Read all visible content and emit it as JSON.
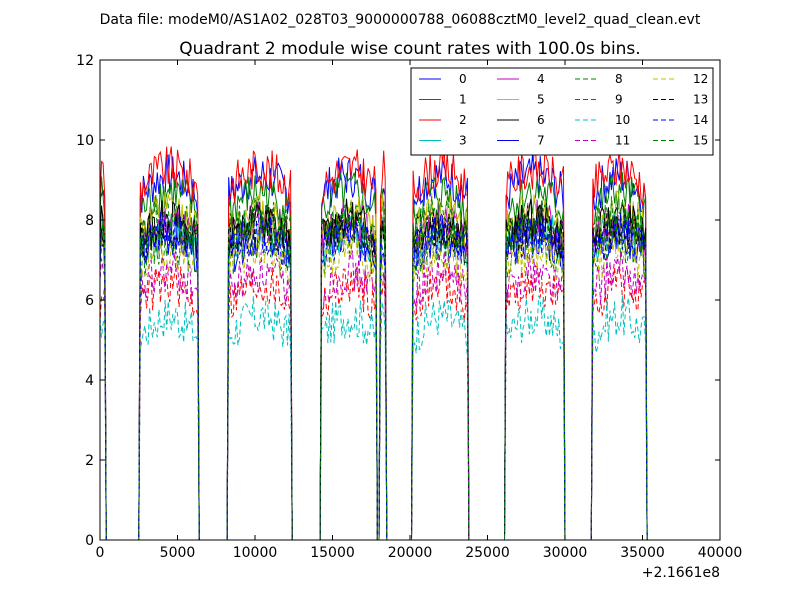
{
  "header": {
    "datafile": "Data file: modeM0/AS1A02_028T03_9000000788_06088cztM0_level2_quad_clean.evt"
  },
  "chart_data": {
    "type": "line",
    "title": "Quadrant 2 module wise count rates with 100.0s bins.",
    "xlabel": "",
    "ylabel": "",
    "x_offset_label": "+2.1661e8",
    "xlim": [
      0,
      40000
    ],
    "ylim": [
      0,
      12
    ],
    "x_ticks": [
      0,
      5000,
      10000,
      15000,
      20000,
      25000,
      30000,
      35000,
      40000
    ],
    "x_tick_labels": [
      "0",
      "5000",
      "10000",
      "15000",
      "20000",
      "25000",
      "30000",
      "35000",
      "40000"
    ],
    "y_ticks": [
      0,
      2,
      4,
      6,
      8,
      10,
      12
    ],
    "y_tick_labels": [
      "0",
      "2",
      "4",
      "6",
      "8",
      "10",
      "12"
    ],
    "grid": false,
    "legend_position": "top-right",
    "bin_width_s": 100,
    "active_segments": [
      [
        0,
        300
      ],
      [
        2600,
        6300
      ],
      [
        8300,
        12300
      ],
      [
        14300,
        17800
      ],
      [
        18100,
        18400
      ],
      [
        20200,
        23700
      ],
      [
        26200,
        29900
      ],
      [
        31800,
        35200
      ]
    ],
    "series": [
      {
        "name": "0",
        "color": "#0000ff",
        "style": "solid",
        "level": 8.6
      },
      {
        "name": "1",
        "color": "#008000",
        "style": "solid",
        "level": 8.2
      },
      {
        "name": "2",
        "color": "#ff0000",
        "style": "solid",
        "level": 8.8
      },
      {
        "name": "3",
        "color": "#00bfbf",
        "style": "solid",
        "level": 7.3
      },
      {
        "name": "4",
        "color": "#bf00bf",
        "style": "solid",
        "level": 7.5
      },
      {
        "name": "5",
        "color": "#bfbf00",
        "style": "solid",
        "level": 7.7
      },
      {
        "name": "6",
        "color": "#000000",
        "style": "solid",
        "level": 7.5
      },
      {
        "name": "7",
        "color": "#0000ff",
        "style": "solid",
        "level": 7.1
      },
      {
        "name": "8",
        "color": "#008000",
        "style": "dashed",
        "level": 7.0
      },
      {
        "name": "9",
        "color": "#ff0000",
        "style": "dashed",
        "level": 5.9
      },
      {
        "name": "10",
        "color": "#00bfbf",
        "style": "dashed",
        "level": 5.1
      },
      {
        "name": "11",
        "color": "#bf00bf",
        "style": "dashed",
        "level": 6.2
      },
      {
        "name": "12",
        "color": "#bfbf00",
        "style": "dashed",
        "level": 6.8
      },
      {
        "name": "13",
        "color": "#000000",
        "style": "dashed",
        "level": 7.4
      },
      {
        "name": "14",
        "color": "#0000ff",
        "style": "dashed",
        "level": 7.2
      },
      {
        "name": "15",
        "color": "#008000",
        "style": "dashed",
        "level": 7.6
      }
    ]
  }
}
